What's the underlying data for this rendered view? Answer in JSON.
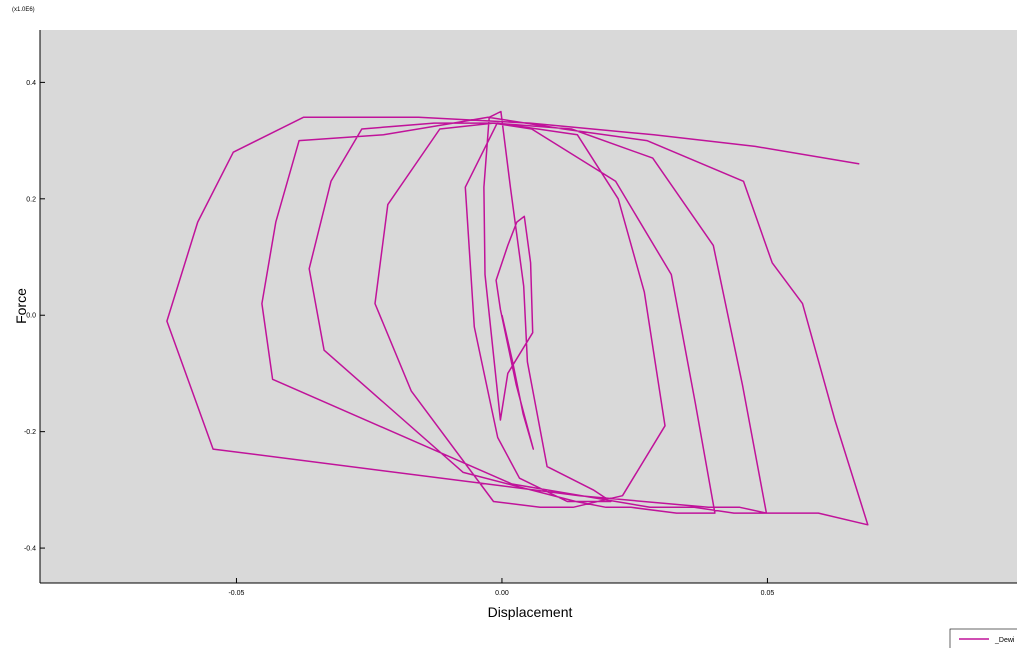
{
  "chart_data": {
    "type": "line",
    "title": "",
    "scale_label": "(x1.0E6)",
    "xlabel": "Displacement",
    "ylabel": "Force",
    "xlim": [
      -0.087,
      0.097
    ],
    "ylim": [
      -0.46,
      0.49
    ],
    "xticks": [
      -0.05,
      0.0,
      0.05
    ],
    "xtick_labels": [
      "-0.05",
      "0.00",
      "0.05"
    ],
    "yticks": [
      -0.4,
      -0.2,
      0.0,
      0.2,
      0.4
    ],
    "ytick_labels": [
      "-0.4",
      "-0.2",
      "0.0",
      "0.2",
      "0.4"
    ],
    "grid": false,
    "line_color": "#c0139a",
    "background": "#d9d9d9",
    "legend": {
      "position": "bottom-right",
      "label": "_Dewi"
    },
    "series": [
      {
        "x": [
          0,
          0.002,
          0.004,
          0.0059,
          0.0027,
          -0.0003,
          -0.0011,
          0.0011,
          0.0028,
          0.0042,
          0.0054,
          0.0058,
          0.0011,
          -0.0003,
          -0.0032,
          -0.0034,
          -0.0024,
          -0.0002,
          0.0016,
          0.0041,
          0.0048,
          0.0085,
          0.0172,
          0.0205,
          0.0123,
          0.0033,
          -0.0008,
          -0.0052,
          -0.0069,
          -0.0009,
          0.0142,
          0.0219,
          0.0268,
          0.0307,
          0.0227,
          0.0134,
          0.0072,
          -0.0016,
          -0.0171,
          -0.0239,
          -0.0215,
          -0.0117,
          -0.0016,
          0.0056,
          0.0214,
          0.0319,
          0.0364,
          0.0401,
          0.0329,
          0.0243,
          0.0196,
          0.0139,
          -0.0073,
          -0.0335,
          -0.0363,
          -0.0322,
          -0.0264,
          -0.0128,
          -0.0014,
          0.0131,
          0.0284,
          0.0398,
          0.0453,
          0.0498,
          0.0437,
          0.0362,
          0.0324,
          0.0279,
          0.0019,
          -0.0432,
          -0.0452,
          -0.0426,
          -0.0382,
          -0.0223,
          -0.0026,
          0.0116,
          0.0273,
          0.0455,
          0.0509,
          0.0566,
          0.0627,
          0.0689,
          0.0596,
          0.0498,
          0.0448,
          0.0389,
          0.0146,
          -0.0544,
          -0.0631,
          -0.0573,
          -0.0506,
          -0.0374,
          -0.0157,
          0.0053,
          0.0286,
          0.0477,
          0.0673
        ],
        "y": [
          0,
          -0.08,
          -0.17,
          -0.23,
          -0.12,
          0.01,
          0.06,
          0.12,
          0.16,
          0.17,
          0.09,
          -0.03,
          -0.1,
          -0.18,
          0.07,
          0.22,
          0.34,
          0.35,
          0.22,
          0.05,
          -0.08,
          -0.26,
          -0.3,
          -0.32,
          -0.32,
          -0.28,
          -0.21,
          -0.02,
          0.22,
          0.33,
          0.31,
          0.2,
          0.04,
          -0.19,
          -0.31,
          -0.33,
          -0.33,
          -0.32,
          -0.13,
          0.02,
          0.19,
          0.32,
          0.33,
          0.32,
          0.23,
          0.07,
          -0.15,
          -0.34,
          -0.34,
          -0.33,
          -0.33,
          -0.32,
          -0.27,
          -0.06,
          0.08,
          0.23,
          0.32,
          0.33,
          0.33,
          0.32,
          0.27,
          0.12,
          -0.12,
          -0.34,
          -0.34,
          -0.33,
          -0.33,
          -0.33,
          -0.29,
          -0.11,
          0.02,
          0.16,
          0.3,
          0.31,
          0.34,
          0.32,
          0.3,
          0.23,
          0.09,
          0.02,
          -0.18,
          -0.36,
          -0.34,
          -0.34,
          -0.33,
          -0.33,
          -0.31,
          -0.23,
          -0.01,
          0.16,
          0.28,
          0.34,
          0.34,
          0.33,
          0.31,
          0.29,
          0.26
        ]
      }
    ]
  }
}
